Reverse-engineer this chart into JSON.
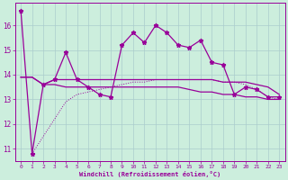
{
  "xlabel": "Windchill (Refroidissement éolien,°C)",
  "ylabel": "",
  "background_color": "#cceedd",
  "grid_color": "#aacccc",
  "line_color": "#990099",
  "xlim": [
    -0.5,
    23.5
  ],
  "ylim": [
    10.5,
    16.9
  ],
  "yticks": [
    11,
    12,
    13,
    14,
    15,
    16
  ],
  "xticks": [
    0,
    1,
    2,
    3,
    4,
    5,
    6,
    7,
    8,
    9,
    10,
    11,
    12,
    13,
    14,
    15,
    16,
    17,
    18,
    19,
    20,
    21,
    22,
    23
  ],
  "series": {
    "line1_x": [
      0,
      1,
      2,
      3,
      4,
      5,
      6,
      7,
      8,
      9,
      10,
      11,
      12,
      13,
      14,
      15,
      16,
      17,
      18,
      19,
      20,
      21,
      22,
      23
    ],
    "line1_y": [
      16.6,
      10.8,
      13.6,
      13.8,
      14.9,
      13.8,
      13.5,
      13.2,
      13.1,
      15.2,
      15.7,
      15.3,
      16.0,
      15.7,
      15.2,
      15.1,
      15.4,
      14.5,
      14.4,
      13.2,
      13.5,
      13.4,
      13.1,
      13.1
    ],
    "line2_x": [
      0,
      1,
      2,
      3,
      4,
      5,
      6,
      7,
      8,
      9,
      10,
      11,
      12,
      13,
      14,
      15,
      16,
      17,
      18,
      19,
      20,
      21,
      22,
      23
    ],
    "line2_y": [
      13.9,
      13.9,
      13.6,
      13.8,
      13.8,
      13.8,
      13.8,
      13.8,
      13.8,
      13.8,
      13.8,
      13.8,
      13.8,
      13.8,
      13.8,
      13.8,
      13.8,
      13.8,
      13.7,
      13.7,
      13.7,
      13.6,
      13.5,
      13.2
    ],
    "line3_x": [
      0,
      1,
      2,
      3,
      4,
      5,
      6,
      7,
      8,
      9,
      10,
      11,
      12,
      13,
      14,
      15,
      16,
      17,
      18,
      19,
      20,
      21,
      22,
      23
    ],
    "line3_y": [
      13.9,
      13.9,
      13.6,
      13.6,
      13.5,
      13.5,
      13.5,
      13.5,
      13.5,
      13.5,
      13.5,
      13.5,
      13.5,
      13.5,
      13.5,
      13.4,
      13.3,
      13.3,
      13.2,
      13.2,
      13.1,
      13.1,
      13.0,
      13.0
    ],
    "line4_x": [
      1,
      2,
      3,
      4,
      5,
      6,
      7,
      8,
      9,
      10,
      11,
      12,
      13,
      14,
      15,
      16,
      17,
      18,
      19,
      20,
      21,
      22,
      23
    ],
    "line4_y": [
      10.8,
      11.5,
      12.2,
      12.9,
      13.2,
      13.3,
      13.4,
      13.5,
      13.6,
      13.7,
      13.7,
      13.8,
      13.8,
      13.8,
      13.8,
      13.8,
      13.8,
      13.7,
      13.7,
      13.6,
      13.4,
      13.1,
      13.0
    ]
  }
}
